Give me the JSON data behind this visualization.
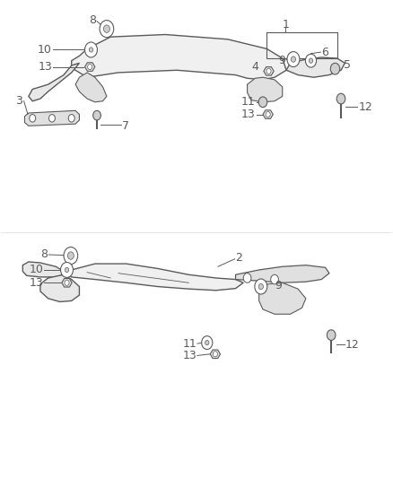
{
  "bg_color": "#ffffff",
  "line_color": "#5a5a5a",
  "label_color": "#5a5a5a",
  "label_fontsize": 9,
  "fig_width": 4.38,
  "fig_height": 5.33
}
